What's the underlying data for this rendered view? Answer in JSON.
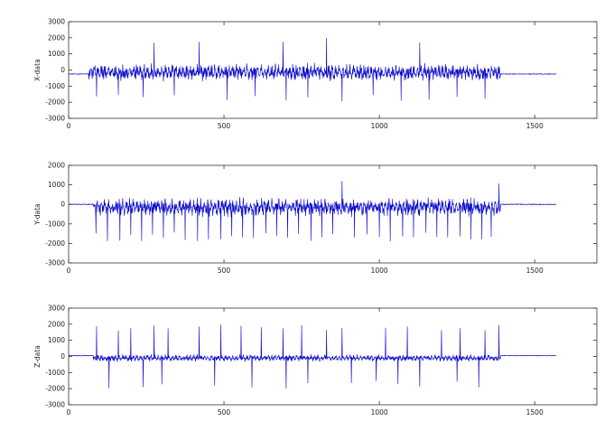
{
  "chart_data": [
    {
      "type": "line",
      "ylabel": "X-data",
      "xlim": [
        0,
        1700
      ],
      "ylim": [
        -3000,
        3000
      ],
      "xticks": [
        0,
        500,
        1000,
        1500
      ],
      "yticks": [
        3000,
        2000,
        1000,
        0,
        -1000,
        -2000,
        -3000
      ],
      "grid": false,
      "line_color": "#0000cc",
      "signal": {
        "sample_count": 1570,
        "active_range": [
          65,
          1390
        ],
        "flat_level": -250,
        "center": -150,
        "spread": 380,
        "spike_positions": [
          275,
          420,
          690,
          830,
          1130
        ],
        "spike_peak": 2000,
        "dip_positions": [
          90,
          160,
          240,
          340,
          420,
          510,
          600,
          700,
          770,
          880,
          980,
          1070,
          1160,
          1250,
          1340
        ],
        "dip_value": -2000
      }
    },
    {
      "type": "line",
      "ylabel": "Y-data",
      "xlim": [
        0,
        1700
      ],
      "ylim": [
        -3000,
        2000
      ],
      "xticks": [
        0,
        500,
        1000,
        1500
      ],
      "yticks": [
        2000,
        1000,
        0,
        -1000,
        -2000,
        -3000
      ],
      "grid": false,
      "line_color": "#0000cc",
      "signal": {
        "sample_count": 1570,
        "active_range": [
          80,
          1390
        ],
        "flat_level": 0,
        "center": -150,
        "spread": 330,
        "spike_positions": [
          880,
          1385
        ],
        "spike_peak": 1300,
        "dip_positions": [
          88,
          125,
          165,
          200,
          235,
          270,
          305,
          340,
          375,
          415,
          450,
          490,
          525,
          560,
          595,
          635,
          670,
          705,
          740,
          780,
          815,
          850,
          920,
          960,
          1000,
          1035,
          1075,
          1110,
          1150,
          1185,
          1220,
          1260,
          1295,
          1330,
          1360
        ],
        "dip_value": -1900
      }
    },
    {
      "type": "line",
      "ylabel": "Z-data",
      "xlim": [
        0,
        1700
      ],
      "ylim": [
        -3000,
        3000
      ],
      "xticks": [
        0,
        500,
        1000,
        1500
      ],
      "yticks": [
        3000,
        2000,
        1000,
        0,
        -1000,
        -2000,
        -3000
      ],
      "grid": false,
      "line_color": "#0000cc",
      "signal": {
        "sample_count": 1570,
        "active_range": [
          80,
          1390
        ],
        "flat_level": 50,
        "center": -100,
        "spread": 150,
        "spike_positions": [
          90,
          160,
          200,
          275,
          320,
          420,
          490,
          555,
          620,
          690,
          750,
          830,
          880,
          1020,
          1090,
          1200,
          1260,
          1340,
          1385
        ],
        "spike_peak": 2000,
        "dip_positions": [
          130,
          240,
          300,
          420,
          470,
          590,
          700,
          770,
          910,
          990,
          1060,
          1130,
          1250,
          1320
        ],
        "dip_value": -2000
      }
    }
  ]
}
